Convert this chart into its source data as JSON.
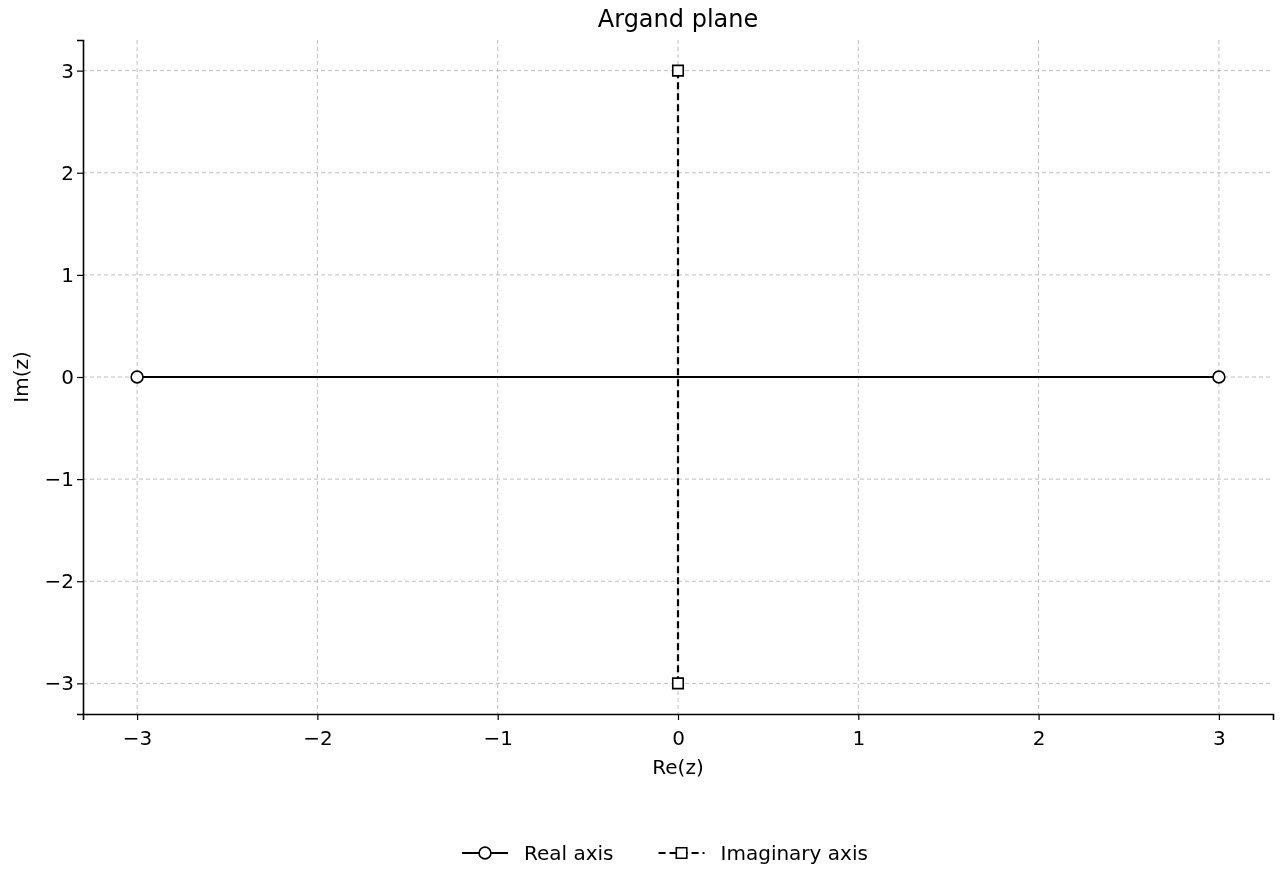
{
  "chart_data": {
    "type": "line",
    "title": "Argand plane",
    "xlabel": "Re(z)",
    "ylabel": "Im(z)",
    "series": [
      {
        "name": "Real axis",
        "color": "#000000",
        "x": [
          -3,
          3
        ],
        "values": [
          0,
          0
        ],
        "marker": "circle",
        "line_style": "solid"
      },
      {
        "name": "Imaginary axis",
        "color": "#000000",
        "x": [
          0,
          0
        ],
        "values": [
          -3,
          3
        ],
        "marker": "square",
        "line_style": "dashed"
      }
    ],
    "xlim": [
      -3.3,
      3.3
    ],
    "ylim": [
      -3.3,
      3.3
    ],
    "xticks": [
      {
        "value": -3,
        "label": "−3"
      },
      {
        "value": -2,
        "label": "−2"
      },
      {
        "value": -1,
        "label": "−1"
      },
      0,
      1,
      2,
      3
    ],
    "yticks": [
      {
        "value": -3,
        "label": "−3"
      },
      {
        "value": -2,
        "label": "−2"
      },
      {
        "value": -1,
        "label": "−1"
      },
      0,
      1,
      2,
      3
    ],
    "grid": true,
    "legend": "bottom"
  }
}
